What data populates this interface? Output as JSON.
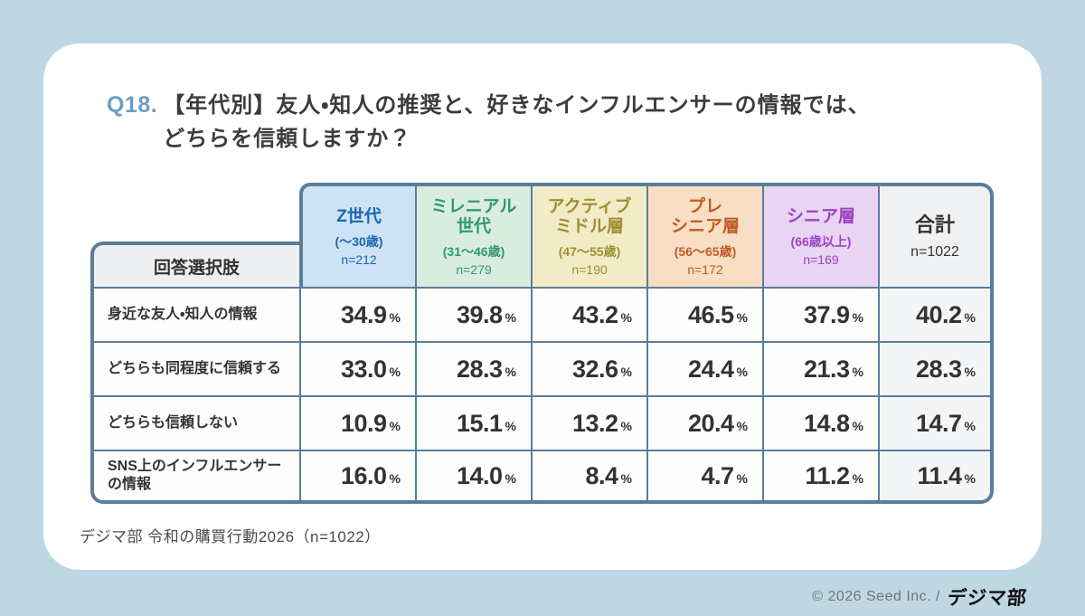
{
  "colors": {
    "page_bg": "#bfd7e2",
    "card_bg": "#ffffff",
    "table_border": "#5b7d9b",
    "question_number_blue": "#6d9dc5",
    "total_column_body_bg": "#f4f5f7"
  },
  "title": {
    "number": "Q18.",
    "line1": "【年代別】友人・知人の推奨と、好きなインフルエンサーの情報では、",
    "line2": "どちらを信頼しますか？"
  },
  "table": {
    "corner_header": "回答選択肢",
    "unit": "%",
    "columns": [
      {
        "line1": "Z世代",
        "line2": "",
        "age": "(～30歳)",
        "n": "n=212",
        "bg": "#cde2f5",
        "fg": "#1a66b4"
      },
      {
        "line1": "ミレニアル",
        "line2": "世代",
        "age": "(31～46歳)",
        "n": "n=279",
        "bg": "#d8ecdf",
        "fg": "#2e9872"
      },
      {
        "line1": "アクティブ",
        "line2": "ミドル層",
        "age": "(47～55歳)",
        "n": "n=190",
        "bg": "#f1ecc5",
        "fg": "#a08d33"
      },
      {
        "line1": "プレ",
        "line2": "シニア層",
        "age": "(56～65歳)",
        "n": "n=172",
        "bg": "#f8dfc3",
        "fg": "#c05a26"
      },
      {
        "line1": "シニア層",
        "line2": "",
        "age": "(66歳以上)",
        "n": "n=169",
        "bg": "#e7d5f2",
        "fg": "#9d43c4"
      },
      {
        "line1": "合計",
        "line2": "",
        "age": "",
        "n": "n=1022",
        "bg": "#f0f1f2",
        "fg": "#333333"
      }
    ],
    "rows": [
      {
        "label": "身近な友人・知人の情報",
        "values": [
          "34.9",
          "39.8",
          "43.2",
          "46.5",
          "37.9",
          "40.2"
        ]
      },
      {
        "label": "どちらも同程度に信頼する",
        "values": [
          "33.0",
          "28.3",
          "32.6",
          "24.4",
          "21.3",
          "28.3"
        ]
      },
      {
        "label": "どちらも信頼しない",
        "values": [
          "10.9",
          "15.1",
          "13.2",
          "20.4",
          "14.8",
          "14.7"
        ]
      },
      {
        "label": "SNS上のインフルエンサーの情報",
        "values": [
          "16.0",
          "14.0",
          "8.4",
          "4.7",
          "11.2",
          "11.4"
        ]
      }
    ]
  },
  "source": "デジマ部 令和の購買行動2026（n=1022）",
  "footer": {
    "copyright": "© 2026 Seed Inc. /",
    "logo": "デジマ部"
  },
  "chart_data": {
    "type": "table",
    "title": "Q18.【年代別】友人・知人の推奨と、好きなインフルエンサーの情報では、どちらを信頼しますか？",
    "unit": "%",
    "columns": [
      "Z世代（～30歳）n=212",
      "ミレニアル世代（31～46歳）n=279",
      "アクティブミドル層（47～55歳）n=190",
      "プレシニア層（56～65歳）n=172",
      "シニア層（66歳以上）n=169",
      "合計 n=1022"
    ],
    "rows": [
      "身近な友人・知人の情報",
      "どちらも同程度に信頼する",
      "どちらも信頼しない",
      "SNS上のインフルエンサーの情報"
    ],
    "values": [
      [
        34.9,
        39.8,
        43.2,
        46.5,
        37.9,
        40.2
      ],
      [
        33.0,
        28.3,
        32.6,
        24.4,
        21.3,
        28.3
      ],
      [
        10.9,
        15.1,
        13.2,
        20.4,
        14.8,
        14.7
      ],
      [
        16.0,
        14.0,
        8.4,
        4.7,
        11.2,
        11.4
      ]
    ],
    "source": "デジマ部 令和の購買行動2026（n=1022）"
  }
}
